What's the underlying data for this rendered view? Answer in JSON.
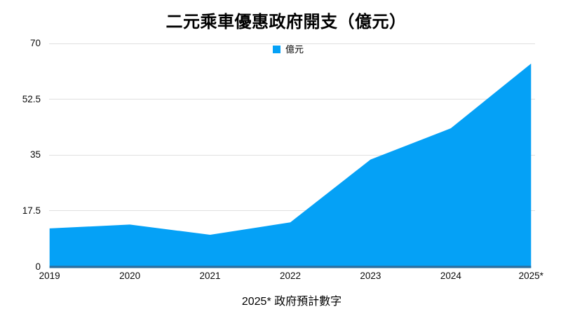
{
  "title": "二元乘車優惠政府開支（億元）",
  "footer": "2025* 政府預計數字",
  "legend": {
    "label": "億元",
    "swatch_color": "#05a1f6"
  },
  "colors": {
    "area_fill": "#05a1f6",
    "axis_line": "#2e6f9e",
    "gridline": "#e0e0e0",
    "text": "#111111"
  },
  "chart_data": {
    "type": "area",
    "title": "二元乘車優惠政府開支（億元）",
    "categories": [
      "2019",
      "2020",
      "2021",
      "2022",
      "2023",
      "2024",
      "2025*"
    ],
    "series": [
      {
        "name": "億元",
        "values": [
          12,
          13.2,
          10,
          13.9,
          33.6,
          43.4,
          63.7
        ]
      }
    ],
    "xlabel": "",
    "ylabel": "",
    "ylim": [
      0,
      70
    ],
    "yticks": [
      0,
      17.5,
      35,
      52.5,
      70
    ],
    "ytick_labels": [
      "0",
      "17.5",
      "35",
      "52.5",
      "70"
    ],
    "grid": true,
    "legend_position": "top-center",
    "note": "2025* 政府預計數字"
  }
}
